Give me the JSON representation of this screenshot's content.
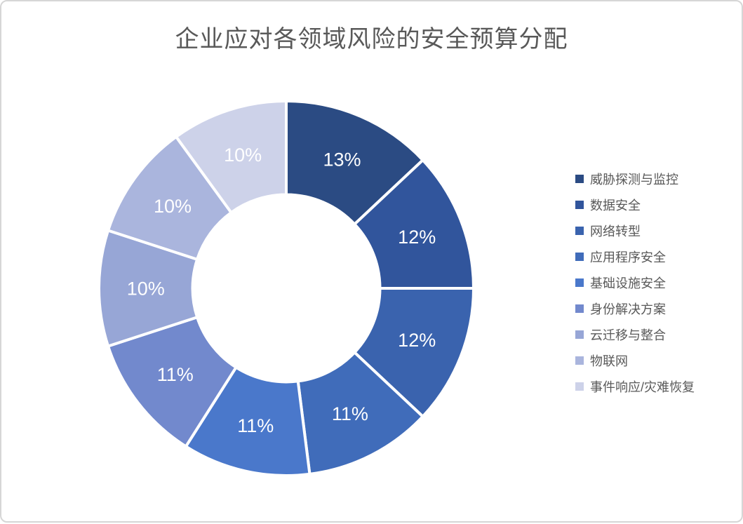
{
  "title": "企业应对各领域风险的安全预算分配",
  "palette": {
    "title_text": "#595959",
    "legend_text": "#595959",
    "page_border": "#d6d6d6",
    "slice_divider": "#ffffff",
    "slice_label_text": "#ffffff",
    "background": "#ffffff"
  },
  "chart_data": {
    "type": "pie",
    "subtype": "donut",
    "title": "企业应对各领域风险的安全预算分配",
    "categories": [
      "威胁探测与监控",
      "数据安全",
      "网络转型",
      "应用程序安全",
      "基础设施安全",
      "身份解决方案",
      "云迁移与整合",
      "物联网",
      "事件响应/灾难恢复"
    ],
    "values": [
      13,
      12,
      12,
      11,
      11,
      11,
      10,
      10,
      10
    ],
    "labels": [
      "13%",
      "12%",
      "12%",
      "11%",
      "11%",
      "11%",
      "10%",
      "10%",
      "10%"
    ],
    "colors": [
      "#2b4b83",
      "#31559c",
      "#3a63ae",
      "#406cba",
      "#4a78cb",
      "#7289cd",
      "#97a6d6",
      "#aab5dd",
      "#cdd2e9"
    ],
    "start_angle_deg": 0,
    "direction": "clockwise",
    "donut_hole_ratio": 0.5,
    "label_color": "#ffffff",
    "legend_position": "right",
    "grid": false
  }
}
